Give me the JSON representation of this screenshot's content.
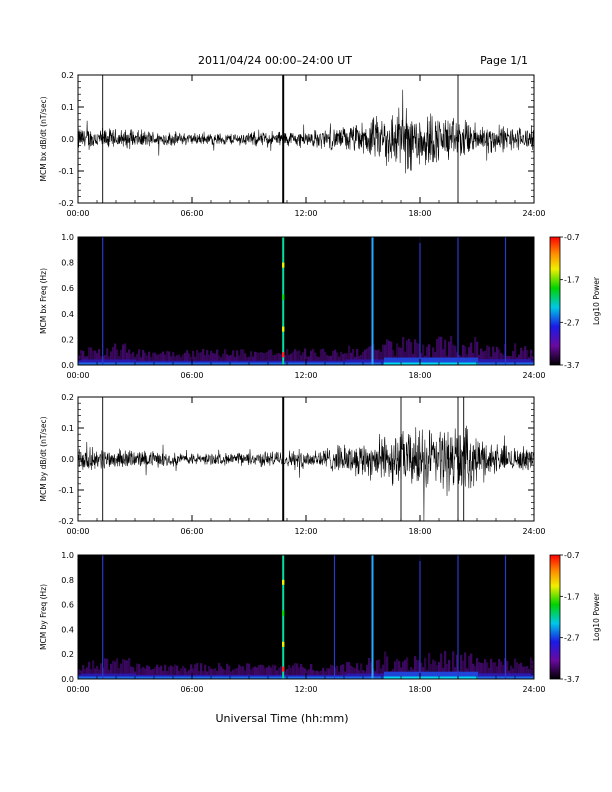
{
  "header": {
    "title": "2011/04/24  00:00–24:00 UT",
    "page": "Page 1/1"
  },
  "xaxis_label": "Universal Time (hh:mm)",
  "chart_data": [
    {
      "type": "line",
      "ylabel": "MCM bx dB/dt (nT/sec)",
      "xlim": [
        0,
        24
      ],
      "ylim": [
        -0.2,
        0.2
      ],
      "x_ticks": [
        "00:00",
        "06:00",
        "12:00",
        "18:00",
        "24:00"
      ],
      "y_ticks": [
        "-0.2",
        "-0.1",
        "0.0",
        "0.1",
        "0.2"
      ],
      "envelope": {
        "hours": [
          0,
          2,
          4,
          6,
          8,
          10,
          12,
          14,
          15,
          16,
          17,
          18,
          19,
          20,
          21,
          22,
          23,
          24
        ],
        "amplitude": [
          0.03,
          0.025,
          0.02,
          0.015,
          0.015,
          0.02,
          0.02,
          0.03,
          0.04,
          0.06,
          0.08,
          0.08,
          0.06,
          0.05,
          0.04,
          0.035,
          0.03,
          0.03
        ]
      },
      "spikes_hours": [
        1.3,
        10.8,
        20.0
      ]
    },
    {
      "type": "heatmap",
      "ylabel": "MCM bx Freq (Hz)",
      "xlim": [
        0,
        24
      ],
      "ylim": [
        0,
        1.0
      ],
      "x_ticks": [
        "00:00",
        "06:00",
        "12:00",
        "18:00",
        "24:00"
      ],
      "y_ticks": [
        "0.0",
        "0.2",
        "0.4",
        "0.6",
        "0.8",
        "1.0"
      ],
      "colorbar": {
        "label": "Log10 Power",
        "ticks": [
          "-0.7",
          "-1.7",
          "-2.7",
          "-3.7"
        ],
        "range": [
          -3.7,
          -0.7
        ]
      },
      "lines_hours": [
        1.3,
        10.8,
        15.5,
        18.0,
        20.0,
        22.5
      ]
    },
    {
      "type": "line",
      "ylabel": "MCM by dB/dt (nT/sec)",
      "xlim": [
        0,
        24
      ],
      "ylim": [
        -0.2,
        0.2
      ],
      "x_ticks": [
        "00:00",
        "06:00",
        "12:00",
        "18:00",
        "24:00"
      ],
      "y_ticks": [
        "-0.2",
        "-0.1",
        "0.0",
        "0.1",
        "0.2"
      ],
      "envelope": {
        "hours": [
          0,
          2,
          4,
          6,
          8,
          10,
          12,
          14,
          15,
          16,
          17,
          18,
          19,
          20,
          21,
          22,
          23,
          24
        ],
        "amplitude": [
          0.03,
          0.025,
          0.02,
          0.015,
          0.015,
          0.02,
          0.025,
          0.035,
          0.045,
          0.06,
          0.07,
          0.08,
          0.08,
          0.09,
          0.06,
          0.04,
          0.03,
          0.03
        ]
      },
      "spikes_hours": [
        1.3,
        10.8,
        17.0,
        20.0,
        20.3
      ]
    },
    {
      "type": "heatmap",
      "ylabel": "MCM by Freq (Hz)",
      "xlim": [
        0,
        24
      ],
      "ylim": [
        0,
        1.0
      ],
      "x_ticks": [
        "00:00",
        "06:00",
        "12:00",
        "18:00",
        "24:00"
      ],
      "y_ticks": [
        "0.0",
        "0.2",
        "0.4",
        "0.6",
        "0.8",
        "1.0"
      ],
      "colorbar": {
        "label": "Log10 Power",
        "ticks": [
          "-0.7",
          "-1.7",
          "-2.7",
          "-3.7"
        ],
        "range": [
          -3.7,
          -0.7
        ]
      },
      "lines_hours": [
        1.3,
        10.8,
        13.5,
        15.5,
        18.0,
        20.0,
        22.5
      ]
    }
  ]
}
